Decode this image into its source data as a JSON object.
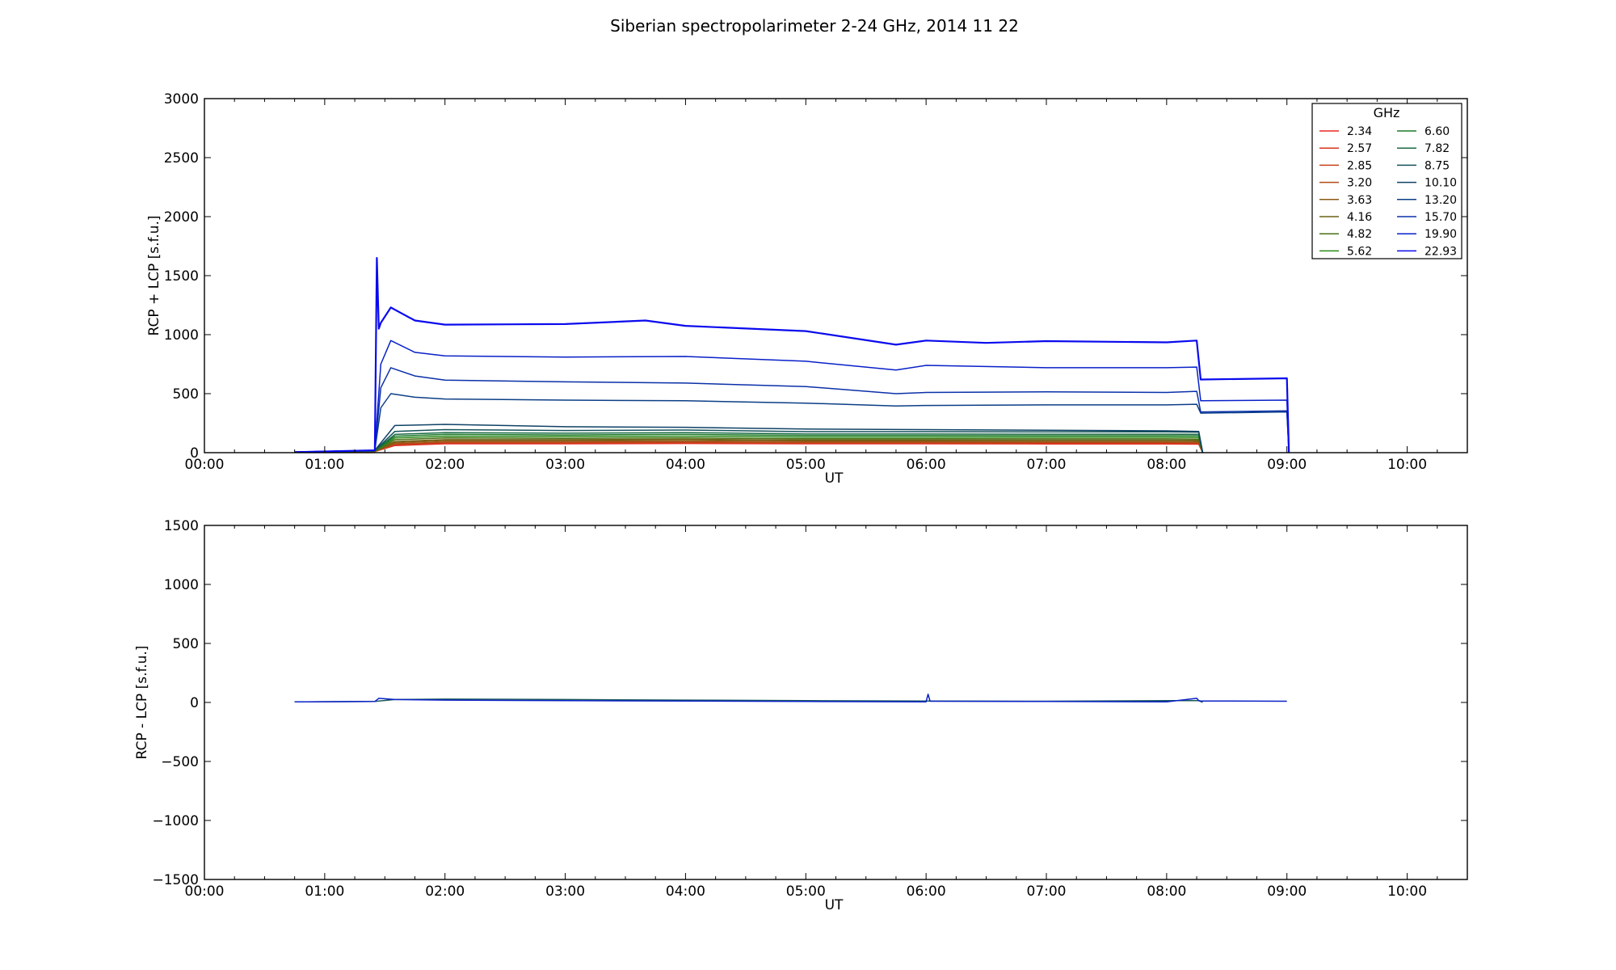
{
  "figure": {
    "title": "Siberian spectropolarimeter 2-24 GHz, 2014 11 22"
  },
  "chart_data": [
    {
      "type": "line",
      "panel": "top",
      "xlabel": "UT",
      "ylabel": "RCP + LCP [s.f.u.]",
      "xlim": [
        "00:00",
        "10:30"
      ],
      "ylim": [
        0,
        3000
      ],
      "xticks": [
        "00:00",
        "01:00",
        "02:00",
        "03:00",
        "04:00",
        "05:00",
        "06:00",
        "07:00",
        "08:00",
        "09:00",
        "10:00"
      ],
      "yticks": [
        "0",
        "500",
        "1000",
        "1500",
        "2000",
        "2500",
        "3000"
      ],
      "legend": {
        "title": "GHz",
        "placement": "top-right",
        "columns": 2
      },
      "grid": false,
      "series": [
        {
          "name": "2.34",
          "color": "#e8281e",
          "x": [
            "00:45",
            "01:25",
            "01:35",
            "02:00",
            "03:00",
            "04:00",
            "05:00",
            "06:00",
            "07:00",
            "08:00",
            "08:16",
            "08:18"
          ],
          "values": [
            5,
            10,
            60,
            75,
            75,
            78,
            75,
            75,
            74,
            74,
            72,
            0
          ]
        },
        {
          "name": "2.57",
          "color": "#d8341c",
          "x": [
            "00:45",
            "01:25",
            "01:35",
            "02:00",
            "03:00",
            "04:00",
            "05:00",
            "06:00",
            "07:00",
            "08:00",
            "08:16",
            "08:18"
          ],
          "values": [
            5,
            10,
            65,
            80,
            80,
            82,
            80,
            80,
            79,
            79,
            77,
            0
          ]
        },
        {
          "name": "2.85",
          "color": "#c8401a",
          "x": [
            "00:45",
            "01:25",
            "01:35",
            "02:00",
            "03:00",
            "04:00",
            "05:00",
            "06:00",
            "07:00",
            "08:00",
            "08:16",
            "08:18"
          ],
          "values": [
            5,
            10,
            70,
            85,
            85,
            87,
            84,
            84,
            83,
            83,
            81,
            0
          ]
        },
        {
          "name": "3.20",
          "color": "#b04c18",
          "x": [
            "00:45",
            "01:25",
            "01:35",
            "02:00",
            "03:00",
            "04:00",
            "05:00",
            "06:00",
            "07:00",
            "08:00",
            "08:16",
            "08:18"
          ],
          "values": [
            5,
            10,
            75,
            90,
            90,
            92,
            88,
            88,
            87,
            87,
            85,
            0
          ]
        },
        {
          "name": "3.63",
          "color": "#8a5a14",
          "x": [
            "00:45",
            "01:25",
            "01:35",
            "02:00",
            "03:00",
            "04:00",
            "05:00",
            "06:00",
            "07:00",
            "08:00",
            "08:16",
            "08:18"
          ],
          "values": [
            5,
            12,
            85,
            100,
            100,
            102,
            97,
            97,
            96,
            96,
            94,
            0
          ]
        },
        {
          "name": "4.16",
          "color": "#6a6214",
          "x": [
            "00:45",
            "01:25",
            "01:35",
            "02:00",
            "03:00",
            "04:00",
            "05:00",
            "06:00",
            "07:00",
            "08:00",
            "08:16",
            "08:18"
          ],
          "values": [
            5,
            12,
            95,
            110,
            110,
            113,
            107,
            107,
            106,
            106,
            104,
            0
          ]
        },
        {
          "name": "4.82",
          "color": "#4a6e14",
          "x": [
            "00:45",
            "01:25",
            "01:35",
            "02:00",
            "03:00",
            "04:00",
            "05:00",
            "06:00",
            "07:00",
            "08:00",
            "08:16",
            "08:18"
          ],
          "values": [
            5,
            14,
            110,
            125,
            122,
            125,
            118,
            118,
            117,
            117,
            115,
            0
          ]
        },
        {
          "name": "5.62",
          "color": "#2a8a1a",
          "x": [
            "00:45",
            "01:25",
            "01:35",
            "02:00",
            "03:00",
            "04:00",
            "05:00",
            "06:00",
            "07:00",
            "08:00",
            "08:16",
            "08:18"
          ],
          "values": [
            5,
            14,
            125,
            140,
            137,
            140,
            132,
            132,
            131,
            131,
            129,
            0
          ]
        },
        {
          "name": "6.60",
          "color": "#1e7a2a",
          "x": [
            "00:45",
            "01:25",
            "01:35",
            "02:00",
            "03:00",
            "04:00",
            "05:00",
            "06:00",
            "07:00",
            "08:00",
            "08:16",
            "08:18"
          ],
          "values": [
            5,
            15,
            140,
            155,
            150,
            155,
            145,
            145,
            144,
            144,
            142,
            0
          ]
        },
        {
          "name": "7.82",
          "color": "#1a6a46",
          "x": [
            "00:45",
            "01:25",
            "01:35",
            "02:00",
            "03:00",
            "04:00",
            "05:00",
            "06:00",
            "07:00",
            "08:00",
            "08:16",
            "08:18"
          ],
          "values": [
            5,
            16,
            155,
            170,
            165,
            170,
            158,
            158,
            157,
            157,
            155,
            0
          ]
        },
        {
          "name": "8.75",
          "color": "#14525a",
          "x": [
            "00:45",
            "01:25",
            "01:35",
            "02:00",
            "03:00",
            "04:00",
            "05:00",
            "06:00",
            "07:00",
            "08:00",
            "08:16",
            "08:18"
          ],
          "values": [
            5,
            18,
            180,
            195,
            188,
            192,
            178,
            178,
            176,
            176,
            174,
            0
          ]
        },
        {
          "name": "10.10",
          "color": "#0f4266",
          "x": [
            "00:45",
            "01:25",
            "01:35",
            "02:00",
            "03:00",
            "04:00",
            "05:00",
            "06:00",
            "07:00",
            "08:00",
            "08:16",
            "08:18"
          ],
          "values": [
            5,
            20,
            230,
            240,
            220,
            215,
            200,
            195,
            190,
            185,
            180,
            0
          ]
        },
        {
          "name": "13.20",
          "color": "#0c3e86",
          "x": [
            "00:45",
            "01:25",
            "01:28",
            "01:33",
            "01:45",
            "02:00",
            "03:00",
            "04:00",
            "05:00",
            "05:45",
            "06:00",
            "07:00",
            "08:00",
            "08:15",
            "08:17",
            "09:00",
            "09:01"
          ],
          "values": [
            5,
            20,
            380,
            500,
            470,
            455,
            445,
            440,
            420,
            395,
            400,
            405,
            405,
            410,
            335,
            345,
            0
          ]
        },
        {
          "name": "15.70",
          "color": "#0a30a8",
          "x": [
            "00:45",
            "01:25",
            "01:28",
            "01:33",
            "01:45",
            "02:00",
            "03:00",
            "04:00",
            "05:00",
            "05:45",
            "06:00",
            "07:00",
            "08:00",
            "08:15",
            "08:17",
            "09:00",
            "09:01"
          ],
          "values": [
            5,
            20,
            550,
            720,
            650,
            615,
            600,
            590,
            560,
            500,
            510,
            515,
            510,
            520,
            345,
            355,
            0
          ]
        },
        {
          "name": "19.90",
          "color": "#0820c8",
          "x": [
            "00:45",
            "01:25",
            "01:28",
            "01:33",
            "01:45",
            "02:00",
            "03:00",
            "04:00",
            "05:00",
            "05:45",
            "06:00",
            "07:00",
            "08:00",
            "08:15",
            "08:17",
            "09:00",
            "09:01"
          ],
          "values": [
            5,
            20,
            750,
            950,
            850,
            820,
            810,
            815,
            775,
            700,
            740,
            720,
            720,
            725,
            440,
            445,
            0
          ]
        },
        {
          "name": "22.93",
          "color": "#0a0aee",
          "x": [
            "00:45",
            "01:25",
            "01:26",
            "01:27",
            "01:28",
            "01:33",
            "01:45",
            "02:00",
            "03:00",
            "03:40",
            "04:00",
            "05:00",
            "05:45",
            "06:00",
            "06:30",
            "07:00",
            "08:00",
            "08:15",
            "08:17",
            "09:00",
            "09:01"
          ],
          "values": [
            5,
            20,
            1650,
            1050,
            1100,
            1230,
            1120,
            1085,
            1090,
            1120,
            1075,
            1030,
            915,
            950,
            930,
            945,
            935,
            950,
            620,
            630,
            0
          ]
        }
      ]
    },
    {
      "type": "line",
      "panel": "bottom",
      "xlabel": "UT",
      "ylabel": "RCP - LCP [s.f.u.]",
      "xlim": [
        "00:00",
        "10:30"
      ],
      "ylim": [
        -1500,
        1500
      ],
      "xticks": [
        "00:00",
        "01:00",
        "02:00",
        "03:00",
        "04:00",
        "05:00",
        "06:00",
        "07:00",
        "08:00",
        "09:00",
        "10:00"
      ],
      "yticks": [
        "−1500",
        "−1000",
        "−500",
        "0",
        "500",
        "1000",
        "1500"
      ],
      "grid": false,
      "series": [
        {
          "color": "#1a5a5a",
          "x": [
            "00:45",
            "01:25",
            "01:35",
            "02:00",
            "03:00",
            "04:00",
            "05:00",
            "06:00",
            "07:00",
            "08:00",
            "08:16",
            "08:18"
          ],
          "values": [
            5,
            8,
            25,
            28,
            25,
            20,
            15,
            12,
            10,
            15,
            15,
            0
          ]
        },
        {
          "color": "#0a20c8",
          "x": [
            "00:45",
            "01:25",
            "01:27",
            "01:35",
            "02:00",
            "03:00",
            "04:00",
            "05:00",
            "06:00",
            "06:01",
            "06:02",
            "07:00",
            "08:00",
            "08:15",
            "08:16",
            "08:17",
            "09:00"
          ],
          "values": [
            5,
            8,
            35,
            25,
            20,
            15,
            12,
            8,
            5,
            70,
            10,
            8,
            5,
            35,
            15,
            12,
            10
          ]
        }
      ]
    }
  ]
}
